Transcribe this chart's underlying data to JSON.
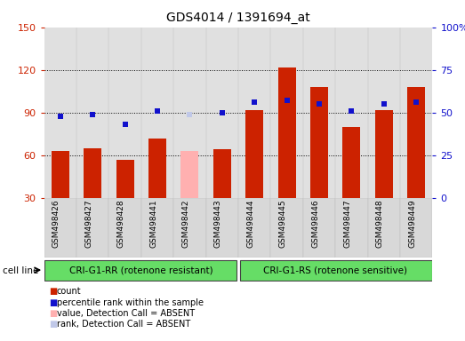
{
  "title": "GDS4014 / 1391694_at",
  "samples": [
    "GSM498426",
    "GSM498427",
    "GSM498428",
    "GSM498441",
    "GSM498442",
    "GSM498443",
    "GSM498444",
    "GSM498445",
    "GSM498446",
    "GSM498447",
    "GSM498448",
    "GSM498449"
  ],
  "bar_values": [
    63,
    65,
    57,
    72,
    63,
    64,
    92,
    122,
    108,
    80,
    92,
    108
  ],
  "bar_colors": [
    "#cc2200",
    "#cc2200",
    "#cc2200",
    "#cc2200",
    "#ffb0b0",
    "#cc2200",
    "#cc2200",
    "#cc2200",
    "#cc2200",
    "#cc2200",
    "#cc2200",
    "#cc2200"
  ],
  "rank_values": [
    48,
    49,
    43,
    51,
    49,
    50,
    56,
    57,
    55,
    51,
    55,
    56
  ],
  "rank_colors": [
    "#1111cc",
    "#1111cc",
    "#1111cc",
    "#1111cc",
    "#c0c8e8",
    "#1111cc",
    "#1111cc",
    "#1111cc",
    "#1111cc",
    "#1111cc",
    "#1111cc",
    "#1111cc"
  ],
  "ylim_left": [
    30,
    150
  ],
  "ylim_right": [
    0,
    100
  ],
  "yticks_left": [
    30,
    60,
    90,
    120,
    150
  ],
  "yticks_right": [
    0,
    25,
    50,
    75,
    100
  ],
  "group1_label": "CRI-G1-RR (rotenone resistant)",
  "group2_label": "CRI-G1-RS (rotenone sensitive)",
  "group1_count": 6,
  "group2_count": 6,
  "cell_line_label": "cell line",
  "group_color": "#66dd66",
  "bar_width": 0.55,
  "rank_marker_size": 5,
  "background_color": "#ffffff",
  "plot_bg_color": "#e0e0e0",
  "grid_color": "#000000",
  "left_axis_color": "#cc2200",
  "right_axis_color": "#1111cc",
  "legend_items": [
    {
      "label": "count",
      "color": "#cc2200"
    },
    {
      "label": "percentile rank within the sample",
      "color": "#1111cc"
    },
    {
      "label": "value, Detection Call = ABSENT",
      "color": "#ffb0b0"
    },
    {
      "label": "rank, Detection Call = ABSENT",
      "color": "#c0c8e8"
    }
  ]
}
